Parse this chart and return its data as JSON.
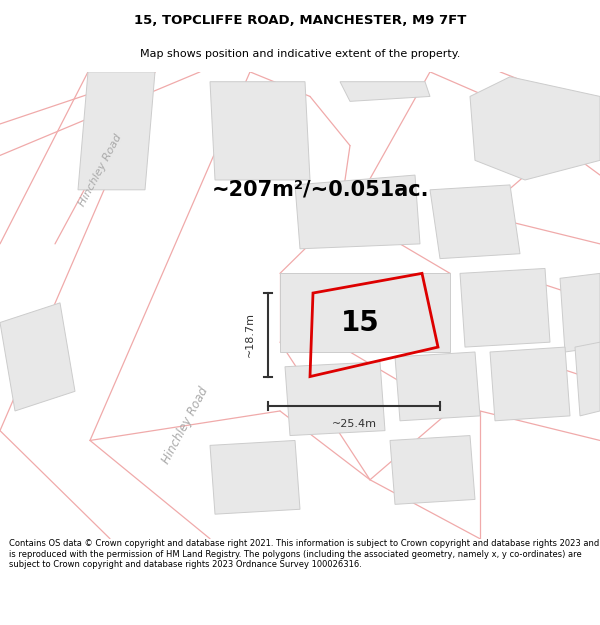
{
  "title": "15, TOPCLIFFE ROAD, MANCHESTER, M9 7FT",
  "subtitle": "Map shows position and indicative extent of the property.",
  "area_text": "~207m²/~0.051ac.",
  "number_label": "15",
  "dim_vertical": "~18.7m",
  "dim_horizontal": "~25.4m",
  "road_label_upper": "Hinchley Road",
  "road_label_lower": "Hinchley Road",
  "footer": "Contains OS data © Crown copyright and database right 2021. This information is subject to Crown copyright and database rights 2023 and is reproduced with the permission of HM Land Registry. The polygons (including the associated geometry, namely x, y co-ordinates) are subject to Crown copyright and database rights 2023 Ordnance Survey 100026316.",
  "map_bg": "#ffffff",
  "building_fill": "#e8e8e8",
  "building_edge": "#cccccc",
  "road_pink": "#f0aaaa",
  "property_stroke": "#dd0000",
  "dim_color": "#333333",
  "title_color": "#000000",
  "road_label_color": "#aaaaaa",
  "area_text_color": "#000000",
  "number_color": "#000000"
}
